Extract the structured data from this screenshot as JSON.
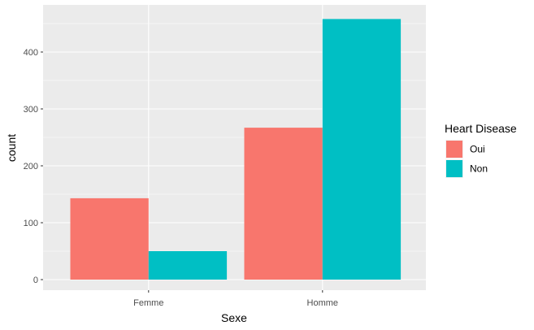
{
  "chart_data": {
    "type": "bar",
    "title": "",
    "xlabel": "Sexe",
    "ylabel": "count",
    "categories": [
      "Femme",
      "Homme"
    ],
    "series": [
      {
        "name": "Oui",
        "color": "#F8766D",
        "values": [
          143,
          267
        ]
      },
      {
        "name": "Non",
        "color": "#00BFC4",
        "values": [
          50,
          458
        ]
      }
    ],
    "ylim": [
      0,
      458
    ],
    "yticks": [
      0,
      100,
      200,
      300,
      400
    ],
    "grid": true,
    "panel_background": "#EBEBEB",
    "grid_color": "#FFFFFF",
    "legend": {
      "title": "Heart Disease",
      "position": "right"
    }
  }
}
